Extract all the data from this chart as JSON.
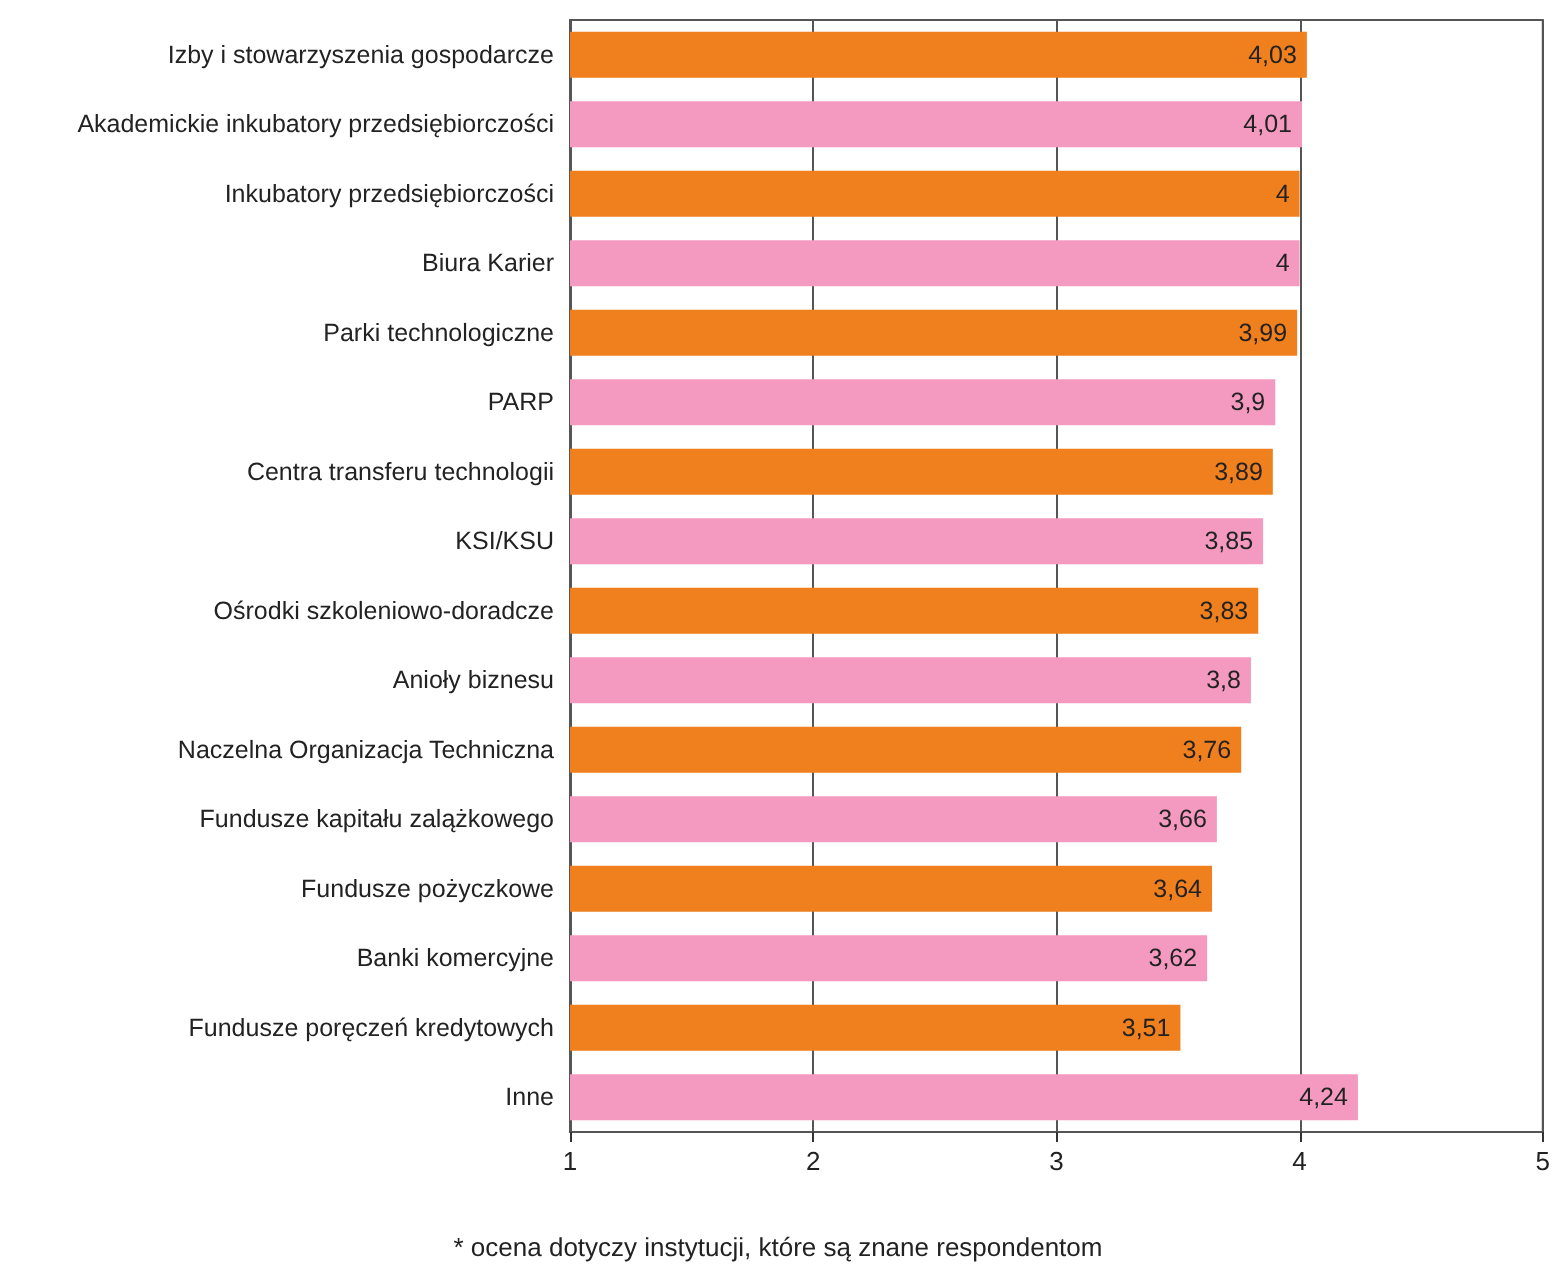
{
  "chart_data": {
    "type": "bar",
    "orientation": "horizontal",
    "categories": [
      "Izby i stowarzyszenia gospodarcze",
      "Akademickie inkubatory przedsiębiorczości",
      "Inkubatory przedsiębiorczości",
      "Biura Karier",
      "Parki technologiczne",
      "PARP",
      "Centra transferu technologii",
      "KSI/KSU",
      "Ośrodki szkoleniowo-doradcze",
      "Anioły biznesu",
      "Naczelna Organizacja Techniczna",
      "Fundusze kapitału zalążkowego",
      "Fundusze pożyczkowe",
      "Banki komercyjne",
      "Fundusze poręczeń kredytowych",
      "Inne"
    ],
    "values": [
      4.03,
      4.01,
      4,
      4,
      3.99,
      3.9,
      3.89,
      3.85,
      3.83,
      3.8,
      3.76,
      3.66,
      3.64,
      3.62,
      3.51,
      4.24
    ],
    "value_labels": [
      "4,03",
      "4,01",
      "4",
      "4",
      "3,99",
      "3,9",
      "3,89",
      "3,85",
      "3,83",
      "3,8",
      "3,76",
      "3,66",
      "3,64",
      "3,62",
      "3,51",
      "4,24"
    ],
    "colors": [
      "#f07f1e",
      "#f49ac1",
      "#f07f1e",
      "#f49ac1",
      "#f07f1e",
      "#f49ac1",
      "#f07f1e",
      "#f49ac1",
      "#f07f1e",
      "#f49ac1",
      "#f07f1e",
      "#f49ac1",
      "#f07f1e",
      "#f49ac1",
      "#f07f1e",
      "#f49ac1"
    ],
    "xlim": [
      1,
      5
    ],
    "xticks": [
      1,
      2,
      3,
      4,
      5
    ],
    "grid": "x",
    "annotations": [
      "* ocena dotyczy instytucji, które są znane respondentom"
    ]
  }
}
